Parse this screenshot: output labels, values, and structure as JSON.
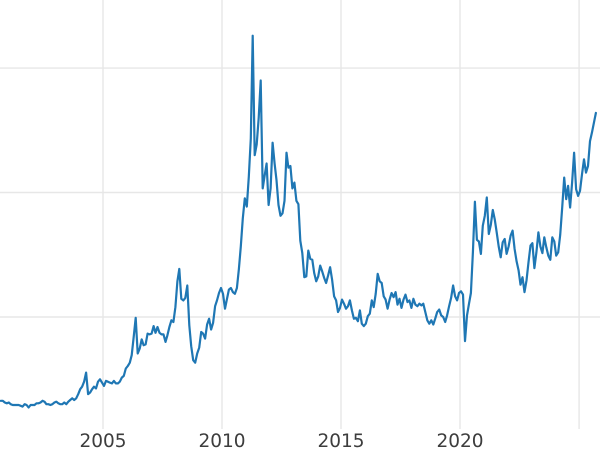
{
  "page": {
    "background_color": "#ffffff"
  },
  "chart_data": {
    "type": "line",
    "title": "",
    "legend": null,
    "grid": "on",
    "line_color": "#1f77b4",
    "line_width": 2.2,
    "grid_color": "#e7e7e7",
    "tick_label_color": "#3d3d3d",
    "x_axis": {
      "label": "",
      "range": [
        2000.674,
        2025.88
      ],
      "ticks": [
        {
          "year": 2005,
          "label": "2005"
        },
        {
          "year": 2010,
          "label": "2010"
        },
        {
          "year": 2015,
          "label": "2015"
        },
        {
          "year": 2020,
          "label": "2020"
        },
        {
          "year": 2025,
          "label": ""
        }
      ]
    },
    "y_axis": {
      "label": "",
      "tick_labels_visible": false,
      "range": [
        0,
        53.2
      ],
      "gridline_values": [
        15,
        30,
        45
      ]
    },
    "series": [
      {
        "name": "price",
        "start_x": 2000.7083,
        "x_step_years": 0.0833333,
        "values": [
          4.9,
          4.9,
          4.7,
          4.6,
          4.7,
          4.5,
          4.4,
          4.4,
          4.4,
          4.4,
          4.3,
          4.2,
          4.5,
          4.4,
          4.1,
          4.4,
          4.4,
          4.4,
          4.6,
          4.6,
          4.7,
          4.9,
          4.8,
          4.5,
          4.5,
          4.4,
          4.5,
          4.7,
          4.8,
          4.6,
          4.5,
          4.5,
          4.7,
          4.5,
          4.8,
          5.0,
          5.2,
          5.0,
          5.2,
          5.7,
          6.3,
          6.6,
          7.2,
          8.3,
          5.7,
          5.9,
          6.3,
          6.6,
          6.4,
          7.2,
          7.5,
          7.1,
          6.7,
          7.3,
          7.2,
          7.1,
          7.0,
          7.3,
          7.0,
          7.0,
          7.2,
          7.7,
          7.9,
          8.8,
          9.1,
          9.5,
          10.4,
          12.6,
          14.9,
          10.6,
          11.2,
          12.3,
          11.6,
          11.7,
          13.0,
          12.9,
          13.0,
          13.9,
          13.1,
          13.8,
          13.1,
          12.9,
          12.9,
          12.0,
          12.8,
          13.8,
          14.6,
          14.4,
          16.2,
          19.3,
          20.8,
          17.2,
          17.0,
          17.3,
          18.8,
          14.0,
          11.5,
          9.8,
          9.5,
          10.6,
          11.3,
          13.2,
          13.0,
          12.4,
          14.1,
          14.8,
          13.5,
          14.3,
          16.3,
          17.0,
          17.9,
          18.5,
          17.8,
          16.0,
          17.2,
          18.3,
          18.5,
          18.0,
          17.8,
          18.5,
          20.8,
          23.5,
          26.9,
          29.3,
          28.3,
          31.9,
          36.5,
          48.9,
          34.5,
          35.8,
          39.0,
          43.5,
          30.5,
          32.0,
          33.5,
          28.5,
          30.5,
          36.0,
          33.5,
          31.5,
          28.5,
          27.2,
          27.5,
          29.0,
          34.8,
          33.0,
          33.2,
          30.5,
          31.2,
          29.0,
          28.6,
          24.2,
          22.7,
          19.8,
          19.9,
          23.0,
          22.0,
          21.9,
          20.3,
          19.3,
          19.9,
          21.2,
          20.5,
          19.7,
          19.1,
          20.0,
          21.0,
          19.5,
          17.5,
          17.0,
          15.6,
          16.1,
          17.1,
          16.6,
          16.0,
          16.3,
          17.0,
          15.8,
          14.8,
          14.9,
          14.5,
          15.8,
          14.2,
          13.9,
          14.2,
          15.1,
          15.4,
          17.0,
          16.2,
          17.8,
          20.2,
          19.3,
          19.1,
          17.5,
          17.1,
          16.0,
          17.1,
          17.9,
          17.4,
          18.0,
          16.5,
          17.2,
          16.1,
          17.1,
          17.7,
          16.8,
          17.0,
          16.1,
          17.2,
          16.5,
          16.3,
          16.6,
          16.4,
          16.6,
          15.6,
          14.6,
          14.2,
          14.6,
          14.1,
          14.8,
          15.6,
          15.9,
          15.2,
          15.0,
          14.4,
          15.2,
          16.3,
          17.3,
          18.8,
          17.5,
          17.0,
          17.9,
          18.1,
          17.7,
          12.1,
          15.2,
          16.6,
          17.9,
          22.8,
          28.9,
          24.3,
          24.1,
          22.6,
          26.0,
          27.2,
          29.4,
          25.0,
          26.1,
          27.9,
          26.8,
          25.2,
          23.5,
          22.2,
          24.0,
          24.4,
          22.6,
          23.5,
          24.8,
          25.4,
          23.2,
          21.7,
          20.6,
          18.9,
          19.8,
          18.0,
          19.4,
          21.6,
          23.6,
          23.9,
          20.9,
          22.8,
          25.2,
          23.5,
          22.7,
          24.6,
          23.4,
          22.4,
          21.9,
          24.6,
          24.1,
          22.4,
          22.8,
          24.9,
          28.2,
          31.8,
          29.2,
          30.8,
          28.2,
          31.2,
          34.8,
          30.4,
          29.6,
          30.2,
          32.2,
          34.0,
          32.4,
          33.2,
          36.2,
          37.2,
          38.4,
          39.6
        ]
      }
    ]
  }
}
